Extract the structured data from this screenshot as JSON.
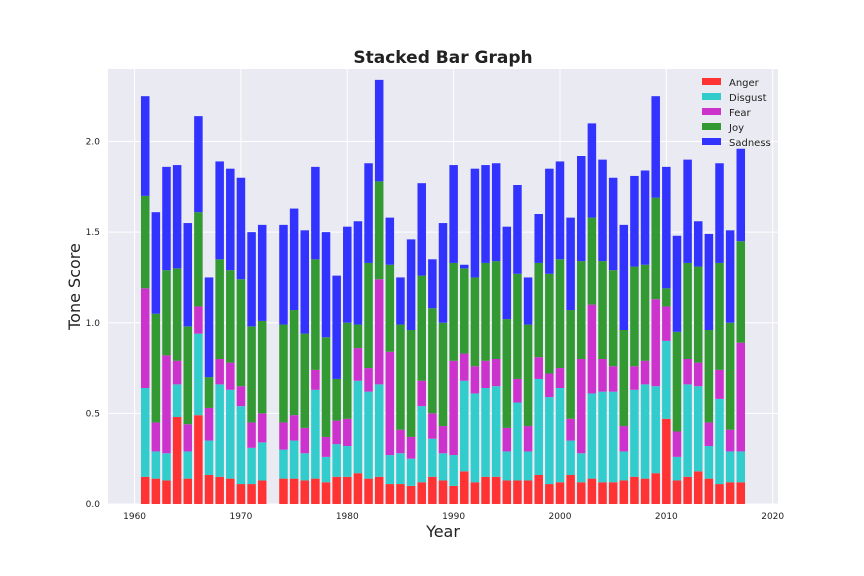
{
  "chart_data": {
    "type": "bar",
    "stacked": true,
    "title": "Stacked Bar Graph",
    "xlabel": "Year",
    "ylabel": "Tone Score",
    "xlim": [
      1957.5,
      2020.5
    ],
    "ylim": [
      0,
      2.4
    ],
    "xticks": [
      1960,
      1970,
      1980,
      1990,
      2000,
      2010,
      2020
    ],
    "yticks": [
      0.0,
      0.5,
      1.0,
      1.5,
      2.0
    ],
    "xtick_labels": [
      "1960",
      "1970",
      "1980",
      "1990",
      "2000",
      "2010",
      "2020"
    ],
    "ytick_labels": [
      "0.0",
      "0.5",
      "1.0",
      "1.5",
      "2.0"
    ],
    "grid": true,
    "legend_position": "top-right",
    "x": [
      1961,
      1962,
      1963,
      1964,
      1965,
      1966,
      1967,
      1968,
      1969,
      1970,
      1971,
      1972,
      1974,
      1975,
      1976,
      1977,
      1978,
      1979,
      1980,
      1981,
      1982,
      1983,
      1984,
      1985,
      1986,
      1987,
      1988,
      1989,
      1990,
      1991,
      1992,
      1993,
      1994,
      1995,
      1996,
      1997,
      1998,
      1999,
      2000,
      2001,
      2002,
      2003,
      2004,
      2005,
      2006,
      2007,
      2008,
      2009,
      2010,
      2011,
      2012,
      2013,
      2014,
      2015,
      2016,
      2017
    ],
    "series": [
      {
        "name": "Anger",
        "color": "#ff3333",
        "values": [
          0.15,
          0.14,
          0.13,
          0.48,
          0.14,
          0.49,
          0.16,
          0.15,
          0.14,
          0.11,
          0.11,
          0.13,
          0.14,
          0.14,
          0.13,
          0.14,
          0.12,
          0.15,
          0.15,
          0.17,
          0.14,
          0.15,
          0.11,
          0.11,
          0.1,
          0.12,
          0.15,
          0.13,
          0.1,
          0.18,
          0.12,
          0.15,
          0.15,
          0.13,
          0.13,
          0.13,
          0.16,
          0.11,
          0.12,
          0.16,
          0.12,
          0.14,
          0.12,
          0.12,
          0.13,
          0.15,
          0.14,
          0.17,
          0.47,
          0.13,
          0.15,
          0.18,
          0.14,
          0.11,
          0.12,
          0.12
        ]
      },
      {
        "name": "Disgust",
        "color": "#33cccc",
        "values": [
          0.49,
          0.15,
          0.15,
          0.18,
          0.15,
          0.45,
          0.19,
          0.51,
          0.49,
          0.43,
          0.2,
          0.21,
          0.16,
          0.21,
          0.15,
          0.49,
          0.14,
          0.18,
          0.17,
          0.51,
          0.48,
          0.51,
          0.16,
          0.17,
          0.15,
          0.42,
          0.21,
          0.15,
          0.17,
          0.5,
          0.49,
          0.49,
          0.5,
          0.16,
          0.43,
          0.16,
          0.53,
          0.48,
          0.52,
          0.19,
          0.16,
          0.47,
          0.5,
          0.5,
          0.16,
          0.48,
          0.52,
          0.48,
          0.43,
          0.13,
          0.51,
          0.47,
          0.18,
          0.47,
          0.17,
          0.17
        ]
      },
      {
        "name": "Fear",
        "color": "#cc33cc",
        "values": [
          0.55,
          0.16,
          0.54,
          0.13,
          0.15,
          0.15,
          0.18,
          0.14,
          0.15,
          0.11,
          0.14,
          0.16,
          0.15,
          0.14,
          0.14,
          0.11,
          0.11,
          0.13,
          0.15,
          0.18,
          0.13,
          0.58,
          0.57,
          0.13,
          0.12,
          0.14,
          0.14,
          0.15,
          0.52,
          0.15,
          0.15,
          0.15,
          0.15,
          0.13,
          0.13,
          0.14,
          0.12,
          0.13,
          0.11,
          0.12,
          0.52,
          0.49,
          0.18,
          0.14,
          0.14,
          0.13,
          0.13,
          0.48,
          0.19,
          0.14,
          0.14,
          0.13,
          0.13,
          0.16,
          0.12,
          0.6
        ]
      },
      {
        "name": "Joy",
        "color": "#339933",
        "values": [
          0.51,
          0.6,
          0.47,
          0.51,
          0.54,
          0.52,
          0.17,
          0.55,
          0.51,
          0.59,
          0.53,
          0.51,
          0.54,
          0.58,
          0.52,
          0.61,
          0.55,
          0.23,
          0.53,
          0.13,
          0.58,
          0.54,
          0.48,
          0.58,
          0.59,
          0.58,
          0.58,
          0.57,
          0.54,
          0.47,
          0.49,
          0.54,
          0.54,
          0.6,
          0.58,
          0.56,
          0.52,
          0.55,
          0.6,
          0.6,
          0.54,
          0.48,
          0.54,
          0.53,
          0.53,
          0.55,
          0.53,
          0.56,
          0.1,
          0.55,
          0.53,
          0.53,
          0.51,
          0.59,
          0.59,
          0.56
        ]
      },
      {
        "name": "Sadness",
        "color": "#3333ff",
        "values": [
          0.55,
          0.56,
          0.57,
          0.57,
          0.57,
          0.53,
          0.55,
          0.54,
          0.56,
          0.56,
          0.52,
          0.53,
          0.55,
          0.56,
          0.57,
          0.51,
          0.58,
          0.57,
          0.53,
          0.57,
          0.55,
          0.56,
          0.26,
          0.26,
          0.5,
          0.51,
          0.27,
          0.55,
          0.54,
          0.02,
          0.6,
          0.54,
          0.54,
          0.51,
          0.49,
          0.26,
          0.27,
          0.58,
          0.54,
          0.51,
          0.58,
          0.52,
          0.56,
          0.51,
          0.58,
          0.5,
          0.52,
          0.56,
          0.67,
          0.53,
          0.57,
          0.25,
          0.53,
          0.55,
          0.51,
          0.51
        ]
      }
    ]
  }
}
